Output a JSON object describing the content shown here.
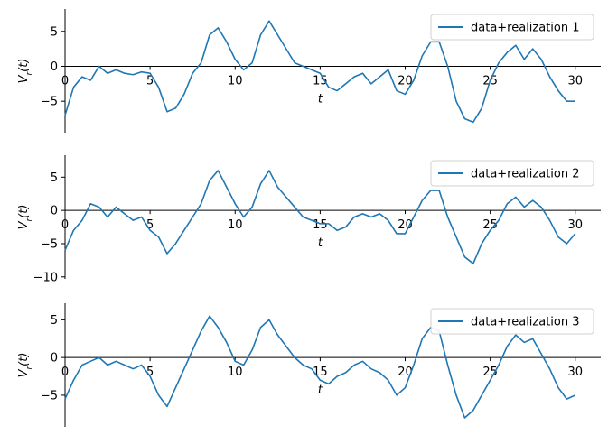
{
  "chart_data": [
    {
      "type": "line",
      "xlabel": "t",
      "ylabel": "V_r(t)",
      "xlim": [
        0,
        31.5
      ],
      "ylim": [
        -9.5,
        8.2
      ],
      "xticks": [
        0,
        5,
        10,
        15,
        20,
        25,
        30
      ],
      "yticks": [
        -5,
        0,
        5
      ],
      "legend_position": "upper right",
      "color": "#1f77b4",
      "series": [
        {
          "name": "data+realization 1",
          "x": [
            0,
            0.5,
            1,
            1.5,
            2,
            2.5,
            3,
            3.5,
            4,
            4.5,
            5,
            5.5,
            6,
            6.5,
            7,
            7.5,
            8,
            8.5,
            9,
            9.5,
            10,
            10.5,
            11,
            11.5,
            12,
            12.5,
            13,
            13.5,
            14,
            14.5,
            15,
            15.5,
            16,
            16.5,
            17,
            17.5,
            18,
            18.5,
            19,
            19.5,
            20,
            20.5,
            21,
            21.5,
            22,
            22.5,
            23,
            23.5,
            24,
            24.5,
            25,
            25.5,
            26,
            26.5,
            27,
            27.5,
            28,
            28.5,
            29,
            29.5,
            30
          ],
          "values": [
            -7,
            -3,
            -1.5,
            -2,
            0,
            -1,
            -0.5,
            -1,
            -1.2,
            -0.8,
            -1,
            -3,
            -6.5,
            -6,
            -4,
            -1,
            0.5,
            4.5,
            5.5,
            3.5,
            1,
            -0.5,
            0.5,
            4.5,
            6.5,
            4.5,
            2.5,
            0.5,
            0,
            -0.5,
            -1,
            -3,
            -3.5,
            -2.5,
            -1.5,
            -1,
            -2.5,
            -1.5,
            -0.5,
            -3.5,
            -4,
            -2,
            1.5,
            3.5,
            3.5,
            0,
            -5,
            -7.5,
            -8,
            -6,
            -2,
            0.5,
            2,
            3,
            1,
            2.5,
            1,
            -1.5,
            -3.5,
            -5,
            -5
          ]
        }
      ]
    },
    {
      "type": "line",
      "xlabel": "t",
      "ylabel": "V_r(t)",
      "xlim": [
        0,
        31.5
      ],
      "ylim": [
        -10.3,
        8.3
      ],
      "xticks": [
        0,
        5,
        10,
        15,
        20,
        25,
        30
      ],
      "yticks": [
        -10,
        -5,
        0,
        5
      ],
      "legend_position": "upper right",
      "color": "#1f77b4",
      "series": [
        {
          "name": "data+realization 2",
          "x": [
            0,
            0.5,
            1,
            1.5,
            2,
            2.5,
            3,
            3.5,
            4,
            4.5,
            5,
            5.5,
            6,
            6.5,
            7,
            7.5,
            8,
            8.5,
            9,
            9.5,
            10,
            10.5,
            11,
            11.5,
            12,
            12.5,
            13,
            13.5,
            14,
            14.5,
            15,
            15.5,
            16,
            16.5,
            17,
            17.5,
            18,
            18.5,
            19,
            19.5,
            20,
            20.5,
            21,
            21.5,
            22,
            22.5,
            23,
            23.5,
            24,
            24.5,
            25,
            25.5,
            26,
            26.5,
            27,
            27.5,
            28,
            28.5,
            29,
            29.5,
            30
          ],
          "values": [
            -6,
            -3,
            -1.5,
            1,
            0.5,
            -1,
            0.5,
            -0.5,
            -1.5,
            -1,
            -3,
            -4,
            -6.5,
            -5,
            -3,
            -1,
            1,
            4.5,
            6,
            3.5,
            1,
            -1,
            0.5,
            4,
            6,
            3.5,
            2,
            0.5,
            -1,
            -1.5,
            -2,
            -2,
            -3,
            -2.5,
            -1,
            -0.5,
            -1,
            -0.5,
            -1.5,
            -3.5,
            -3.5,
            -1,
            1.5,
            3,
            3,
            -1,
            -4,
            -7,
            -8,
            -5,
            -3,
            -1.5,
            1,
            2,
            0.5,
            1.5,
            0.5,
            -1.5,
            -4,
            -5,
            -3.5
          ]
        }
      ]
    },
    {
      "type": "line",
      "xlabel": "t",
      "ylabel": "V_r(t)",
      "xlim": [
        0,
        31.5
      ],
      "ylim": [
        -9.2,
        7.2
      ],
      "xticks": [
        0,
        5,
        10,
        15,
        20,
        25,
        30
      ],
      "yticks": [
        -5,
        0,
        5
      ],
      "legend_position": "upper right",
      "color": "#1f77b4",
      "series": [
        {
          "name": "data+realization 3",
          "x": [
            0,
            0.5,
            1,
            1.5,
            2,
            2.5,
            3,
            3.5,
            4,
            4.5,
            5,
            5.5,
            6,
            6.5,
            7,
            7.5,
            8,
            8.5,
            9,
            9.5,
            10,
            10.5,
            11,
            11.5,
            12,
            12.5,
            13,
            13.5,
            14,
            14.5,
            15,
            15.5,
            16,
            16.5,
            17,
            17.5,
            18,
            18.5,
            19,
            19.5,
            20,
            20.5,
            21,
            21.5,
            22,
            22.5,
            23,
            23.5,
            24,
            24.5,
            25,
            25.5,
            26,
            26.5,
            27,
            27.5,
            28,
            28.5,
            29,
            29.5,
            30
          ],
          "values": [
            -5.5,
            -3,
            -1,
            -0.5,
            0,
            -1,
            -0.5,
            -1,
            -1.5,
            -1,
            -2.5,
            -5,
            -6.5,
            -4,
            -1.5,
            1,
            3.5,
            5.5,
            4,
            2,
            -0.5,
            -1,
            1,
            4,
            5,
            3,
            1.5,
            0,
            -1,
            -1.5,
            -3,
            -3.5,
            -2.5,
            -2,
            -1,
            -0.5,
            -1.5,
            -2,
            -3,
            -5,
            -4,
            -1,
            2.5,
            4,
            3.5,
            -1,
            -5,
            -8,
            -7,
            -5,
            -3,
            -1,
            1.5,
            3,
            2,
            2.5,
            0.5,
            -1.5,
            -4,
            -5.5,
            -5
          ]
        }
      ]
    }
  ]
}
